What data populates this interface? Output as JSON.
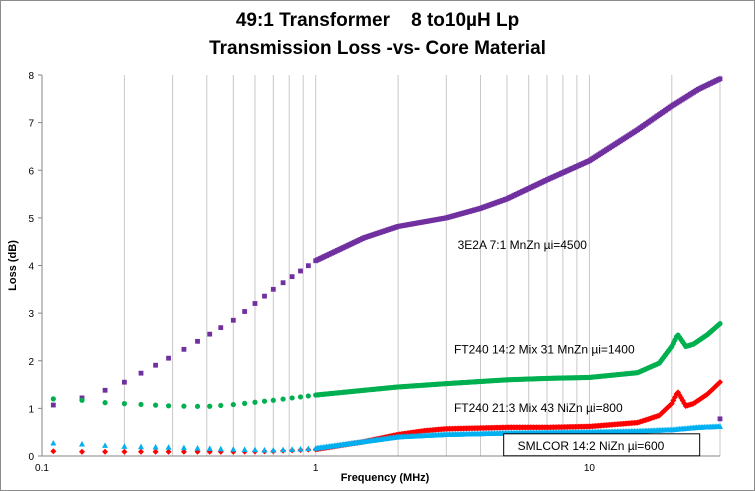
{
  "chart_data": {
    "type": "scatter",
    "title": "49:1 Transformer    8 to10µH Lp",
    "subtitle": "Transmission Loss -vs- Core Material",
    "xlabel": "Frequency (MHz)",
    "ylabel": "Loss (dB)",
    "x_scale": "log",
    "xlim": [
      0.1,
      30
    ],
    "ylim": [
      0,
      8
    ],
    "x_ticks": [
      {
        "value": 0.1,
        "label": "0.1"
      },
      {
        "value": 1,
        "label": "1"
      },
      {
        "value": 10,
        "label": "10"
      }
    ],
    "y_ticks": [
      "0",
      "1",
      "2",
      "3",
      "4",
      "5",
      "6",
      "7",
      "8"
    ],
    "grid": "vertical",
    "series": [
      {
        "name": "3E2A 7:1 MnZn µi=4500",
        "color": "#7030a0",
        "marker": "square",
        "points": [
          [
            0.11,
            1.07
          ],
          [
            0.14,
            1.22
          ],
          [
            0.17,
            1.38
          ],
          [
            0.2,
            1.55
          ],
          [
            0.3,
            2.1
          ],
          [
            0.5,
            2.85
          ],
          [
            0.7,
            3.5
          ],
          [
            1.0,
            4.1
          ],
          [
            1.5,
            4.58
          ],
          [
            2.0,
            4.82
          ],
          [
            3.0,
            5.0
          ],
          [
            4.0,
            5.2
          ],
          [
            5.0,
            5.4
          ],
          [
            7.0,
            5.8
          ],
          [
            10.0,
            6.2
          ],
          [
            15.0,
            6.85
          ],
          [
            20.0,
            7.35
          ],
          [
            25.0,
            7.7
          ],
          [
            30.0,
            7.92
          ]
        ]
      },
      {
        "name": "FT240 14:2  Mix 31 MnZn µi=1400",
        "color": "#00b050",
        "marker": "circle",
        "points": [
          [
            0.11,
            1.2
          ],
          [
            0.14,
            1.17
          ],
          [
            0.17,
            1.12
          ],
          [
            0.2,
            1.1
          ],
          [
            0.3,
            1.05
          ],
          [
            0.4,
            1.04
          ],
          [
            0.5,
            1.08
          ],
          [
            0.7,
            1.17
          ],
          [
            1.0,
            1.28
          ],
          [
            1.5,
            1.38
          ],
          [
            2.0,
            1.45
          ],
          [
            3.0,
            1.52
          ],
          [
            5.0,
            1.6
          ],
          [
            7.0,
            1.63
          ],
          [
            10.0,
            1.65
          ],
          [
            15.0,
            1.75
          ],
          [
            18.0,
            1.95
          ],
          [
            20.0,
            2.3
          ],
          [
            21.0,
            2.55
          ],
          [
            22.5,
            2.3
          ],
          [
            24.0,
            2.35
          ],
          [
            27.0,
            2.55
          ],
          [
            30.0,
            2.78
          ]
        ]
      },
      {
        "name": "FT240 21:3  Mix 43 NiZn µi=800",
        "color": "#ff0000",
        "marker": "diamond",
        "points": [
          [
            0.11,
            0.1
          ],
          [
            0.14,
            0.09
          ],
          [
            0.17,
            0.09
          ],
          [
            0.2,
            0.09
          ],
          [
            0.3,
            0.09
          ],
          [
            0.5,
            0.09
          ],
          [
            0.7,
            0.1
          ],
          [
            1.0,
            0.14
          ],
          [
            1.5,
            0.3
          ],
          [
            2.0,
            0.45
          ],
          [
            2.5,
            0.53
          ],
          [
            3.0,
            0.57
          ],
          [
            5.0,
            0.6
          ],
          [
            7.0,
            0.6
          ],
          [
            10.0,
            0.62
          ],
          [
            15.0,
            0.7
          ],
          [
            18.0,
            0.85
          ],
          [
            20.0,
            1.1
          ],
          [
            21.0,
            1.35
          ],
          [
            22.5,
            1.05
          ],
          [
            24.0,
            1.1
          ],
          [
            27.0,
            1.3
          ],
          [
            30.0,
            1.55
          ]
        ]
      },
      {
        "name": "SMLCOR 14:2  NiZn µi=600",
        "color": "#00b0f0",
        "marker": "triangle",
        "points": [
          [
            0.11,
            0.27
          ],
          [
            0.14,
            0.25
          ],
          [
            0.17,
            0.22
          ],
          [
            0.2,
            0.2
          ],
          [
            0.3,
            0.18
          ],
          [
            0.5,
            0.14
          ],
          [
            0.7,
            0.12
          ],
          [
            1.0,
            0.16
          ],
          [
            1.5,
            0.3
          ],
          [
            2.0,
            0.4
          ],
          [
            3.0,
            0.45
          ],
          [
            5.0,
            0.48
          ],
          [
            10.0,
            0.5
          ],
          [
            15.0,
            0.52
          ],
          [
            20.0,
            0.55
          ],
          [
            25.0,
            0.6
          ],
          [
            30.0,
            0.62
          ]
        ]
      }
    ],
    "annotations": [
      {
        "text": "3E2A 7:1 MnZn µi=4500",
        "at": [
          3.3,
          4.35
        ],
        "box": false
      },
      {
        "text": "FT240 14:2  Mix 31 MnZn µi=1400",
        "at": [
          3.2,
          2.15
        ],
        "box": false
      },
      {
        "text": "FT240 21:3  Mix 43 NiZn µi=800",
        "at": [
          3.2,
          0.92
        ],
        "box": false
      },
      {
        "text": "SMLCOR 14:2  NiZn µi=600",
        "at": [
          5.2,
          0.13
        ],
        "box": true
      }
    ],
    "extra_points": [
      {
        "x": 30.0,
        "y": 0.78,
        "color": "#7030a0"
      }
    ]
  }
}
